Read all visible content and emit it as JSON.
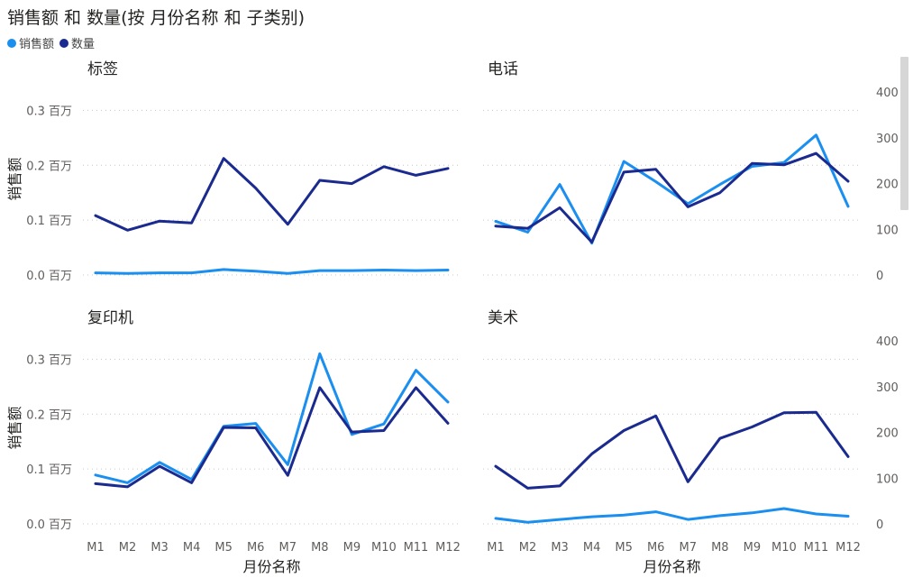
{
  "title": "销售额 和 数量(按 月份名称 和 子类别)",
  "legend": [
    {
      "label": "销售额",
      "color": "#1A8FEF"
    },
    {
      "label": "数量",
      "color": "#1A2A8F"
    }
  ],
  "chart_data": {
    "type": "line",
    "x_axis_title": "月份名称",
    "y_left_title": "销售额",
    "categories": [
      "M1",
      "M2",
      "M3",
      "M4",
      "M5",
      "M6",
      "M7",
      "M8",
      "M9",
      "M10",
      "M11",
      "M12"
    ],
    "y_left": {
      "range": [
        0,
        0.35
      ],
      "ticks": [
        0,
        0.1,
        0.2,
        0.3
      ],
      "tick_labels": [
        "0.0 百万",
        "0.1 百万",
        "0.2 百万",
        "0.3 百万"
      ],
      "unit": "百万"
    },
    "y_right": {
      "range": [
        0,
        420
      ],
      "ticks": [
        0,
        100,
        200,
        300,
        400
      ],
      "tick_labels": [
        "0",
        "100",
        "200",
        "300",
        "400"
      ]
    },
    "grid": true,
    "legend_position": "top-left",
    "panels": [
      {
        "title": "标签",
        "series": [
          {
            "name": "销售额",
            "axis": "left",
            "values": [
              0.004,
              0.003,
              0.004,
              0.004,
              0.01,
              0.007,
              0.003,
              0.008,
              0.008,
              0.009,
              0.008,
              0.009
            ]
          },
          {
            "name": "数量",
            "axis": "right",
            "values": [
              130,
              98,
              118,
              114,
              255,
              190,
              111,
              207,
              200,
              237,
              218,
              233
            ]
          }
        ]
      },
      {
        "title": "电话",
        "series": [
          {
            "name": "销售额",
            "axis": "left",
            "values": [
              0.098,
              0.078,
              0.165,
              0.058,
              0.207,
              0.17,
              0.13,
              0.165,
              0.198,
              0.205,
              0.255,
              0.125
            ]
          },
          {
            "name": "数量",
            "axis": "right",
            "values": [
              107,
              102,
              147,
              72,
              225,
              231,
              149,
              180,
              244,
              241,
              266,
              205
            ]
          }
        ]
      },
      {
        "title": "复印机",
        "series": [
          {
            "name": "销售额",
            "axis": "left",
            "values": [
              0.089,
              0.075,
              0.112,
              0.081,
              0.178,
              0.183,
              0.108,
              0.31,
              0.163,
              0.182,
              0.28,
              0.222
            ]
          },
          {
            "name": "数量",
            "axis": "right",
            "values": [
              88,
              81,
              126,
              90,
              211,
              210,
              106,
              298,
              201,
              204,
              298,
              220
            ]
          }
        ]
      },
      {
        "title": "美术",
        "series": [
          {
            "name": "销售额",
            "axis": "left",
            "values": [
              0.01,
              0.003,
              0.008,
              0.013,
              0.016,
              0.022,
              0.008,
              0.015,
              0.02,
              0.028,
              0.018,
              0.014
            ]
          },
          {
            "name": "数量",
            "axis": "right",
            "values": [
              126,
              78,
              83,
              153,
              204,
              236,
              92,
              187,
              212,
              243,
              244,
              147
            ]
          }
        ]
      }
    ]
  }
}
